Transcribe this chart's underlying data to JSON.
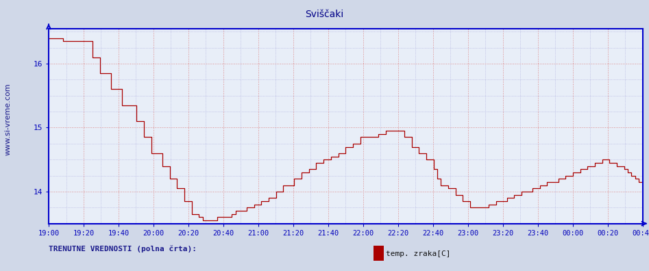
{
  "title": "Sviščaki",
  "bg_color": "#d0d8e8",
  "plot_bg_color": "#e8eef8",
  "line_color": "#aa0000",
  "axis_color": "#0000cc",
  "grid_color_major": "#dd8888",
  "grid_color_minor": "#aaaadd",
  "title_color": "#000088",
  "tick_color": "#0000bb",
  "watermark_color": "#1a1a8c",
  "ylim_min": 13.5,
  "ylim_max": 16.55,
  "yticks": [
    14,
    15,
    16
  ],
  "xtick_labels": [
    "19:00",
    "19:20",
    "19:40",
    "20:00",
    "20:20",
    "20:40",
    "21:00",
    "21:20",
    "21:40",
    "22:00",
    "22:20",
    "22:40",
    "23:00",
    "23:20",
    "23:40",
    "00:00",
    "00:20",
    "00:40"
  ],
  "footer_text": "TRENUTNE VREDNOSTI (polna črta):",
  "legend_label": "temp. zraka[C]",
  "legend_color": "#aa0000",
  "temp_data": [
    16.4,
    16.4,
    16.4,
    16.4,
    16.35,
    16.35,
    16.35,
    16.35,
    16.35,
    16.35,
    16.35,
    16.35,
    16.1,
    16.1,
    15.85,
    15.85,
    15.85,
    15.6,
    15.6,
    15.6,
    15.35,
    15.35,
    15.35,
    15.35,
    15.1,
    15.1,
    14.85,
    14.85,
    14.6,
    14.6,
    14.6,
    14.4,
    14.4,
    14.2,
    14.2,
    14.05,
    14.05,
    13.85,
    13.85,
    13.65,
    13.65,
    13.6,
    13.55,
    13.55,
    13.55,
    13.55,
    13.6,
    13.6,
    13.6,
    13.6,
    13.65,
    13.7,
    13.7,
    13.7,
    13.75,
    13.75,
    13.8,
    13.8,
    13.85,
    13.85,
    13.9,
    13.9,
    14.0,
    14.0,
    14.1,
    14.1,
    14.1,
    14.2,
    14.2,
    14.3,
    14.3,
    14.35,
    14.35,
    14.45,
    14.45,
    14.5,
    14.5,
    14.55,
    14.55,
    14.6,
    14.6,
    14.7,
    14.7,
    14.75,
    14.75,
    14.85,
    14.85,
    14.85,
    14.85,
    14.85,
    14.9,
    14.9,
    14.95,
    14.95,
    14.95,
    14.95,
    14.95,
    14.85,
    14.85,
    14.7,
    14.7,
    14.6,
    14.6,
    14.5,
    14.5,
    14.35,
    14.2,
    14.1,
    14.1,
    14.05,
    14.05,
    13.95,
    13.95,
    13.85,
    13.85,
    13.75,
    13.75,
    13.75,
    13.75,
    13.75,
    13.8,
    13.8,
    13.85,
    13.85,
    13.85,
    13.9,
    13.9,
    13.95,
    13.95,
    14.0,
    14.0,
    14.0,
    14.05,
    14.05,
    14.1,
    14.1,
    14.15,
    14.15,
    14.15,
    14.2,
    14.2,
    14.25,
    14.25,
    14.3,
    14.3,
    14.35,
    14.35,
    14.4,
    14.4,
    14.45,
    14.45,
    14.5,
    14.5,
    14.45,
    14.45,
    14.4,
    14.4,
    14.35,
    14.3,
    14.25,
    14.2,
    14.15,
    14.1
  ]
}
